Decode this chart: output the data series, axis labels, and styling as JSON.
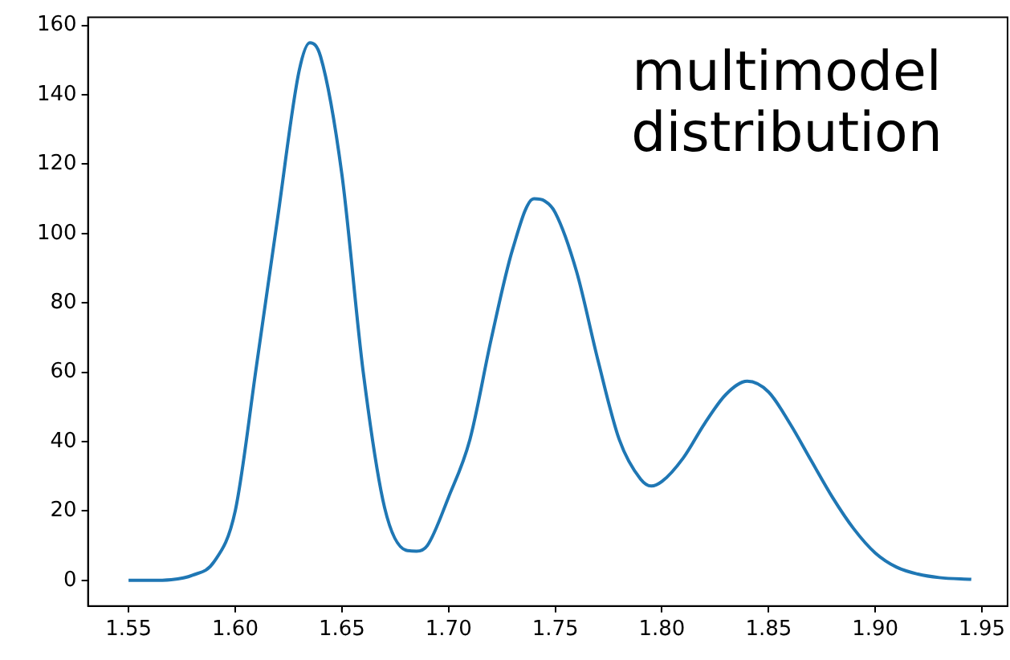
{
  "chart_data": {
    "type": "line",
    "annotations": [
      "multimodel distribution"
    ],
    "x": [
      1.55,
      1.56,
      1.57,
      1.58,
      1.59,
      1.6,
      1.61,
      1.62,
      1.63,
      1.635,
      1.64,
      1.65,
      1.66,
      1.67,
      1.68,
      1.685,
      1.69,
      1.7,
      1.71,
      1.72,
      1.73,
      1.74,
      1.745,
      1.75,
      1.76,
      1.77,
      1.78,
      1.79,
      1.795,
      1.8,
      1.81,
      1.82,
      1.83,
      1.84,
      1.85,
      1.86,
      1.87,
      1.88,
      1.89,
      1.9,
      1.91,
      1.92,
      1.93,
      1.945
    ],
    "series": [
      {
        "color": "#1f77b4",
        "values": [
          0,
          0,
          0.2,
          1.5,
          5.3,
          20,
          62,
          105,
          147,
          155,
          151,
          117,
          60,
          21,
          8.7,
          8.4,
          10,
          24,
          40.6,
          69.6,
          95.4,
          110,
          109.4,
          106,
          89,
          63.5,
          40.6,
          29.2,
          27.2,
          28.5,
          35.3,
          45.2,
          53.6,
          57.4,
          54.3,
          45.2,
          34.5,
          23.9,
          14.8,
          7.9,
          3.8,
          1.8,
          0.8,
          0.3
        ]
      }
    ],
    "xlim": [
      1.531,
      1.962
    ],
    "xticks": [
      {
        "value": 1.55,
        "label": "1.55"
      },
      {
        "value": 1.6,
        "label": "1.60"
      },
      {
        "value": 1.65,
        "label": "1.65"
      },
      {
        "value": 1.7,
        "label": "1.70"
      },
      {
        "value": 1.75,
        "label": "1.75"
      },
      {
        "value": 1.8,
        "label": "1.80"
      },
      {
        "value": 1.85,
        "label": "1.85"
      },
      {
        "value": 1.9,
        "label": "1.90"
      },
      {
        "value": 1.95,
        "label": "1.95"
      }
    ],
    "ylim": [
      -7.4,
      162.3
    ],
    "yticks": [
      0,
      20,
      40,
      60,
      80,
      100,
      120,
      140,
      160
    ],
    "grid": false,
    "legend": false,
    "marker": "none",
    "line_style": "solid"
  }
}
